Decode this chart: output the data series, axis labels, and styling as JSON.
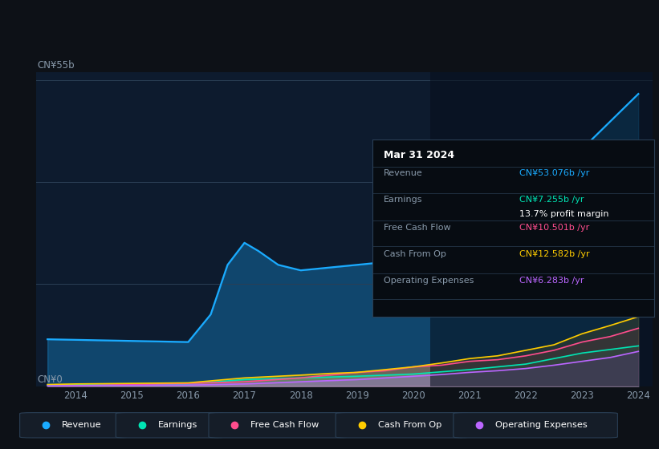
{
  "bg_color": "#0d1117",
  "chart_bg": "#0d1b2e",
  "tooltip": {
    "date": "Mar 31 2024",
    "revenue_label": "Revenue",
    "revenue_val": "CN¥53.076b /yr",
    "earnings_label": "Earnings",
    "earnings_val": "CN¥7.255b /yr",
    "profit_margin": "13.7% profit margin",
    "fcf_label": "Free Cash Flow",
    "fcf_val": "CN¥10.501b /yr",
    "cashop_label": "Cash From Op",
    "cashop_val": "CN¥12.582b /yr",
    "opex_label": "Operating Expenses",
    "opex_val": "CN¥6.283b /yr"
  },
  "ylabel_top": "CN¥55b",
  "ylabel_zero": "CN¥0",
  "x_labels": [
    "2014",
    "2015",
    "2016",
    "2017",
    "2018",
    "2019",
    "2020",
    "2021",
    "2022",
    "2023",
    "2024"
  ],
  "colors": {
    "revenue": "#1aabff",
    "earnings": "#00e5b4",
    "free_cash_flow": "#ff4d8d",
    "cash_from_op": "#ffcc00",
    "operating_expenses": "#bb66ff"
  },
  "legend_items": [
    "Revenue",
    "Earnings",
    "Free Cash Flow",
    "Cash From Op",
    "Operating Expenses"
  ],
  "ylim": [
    0,
    57
  ],
  "grid_vals": [
    0,
    18.5,
    37.0,
    55.5
  ]
}
